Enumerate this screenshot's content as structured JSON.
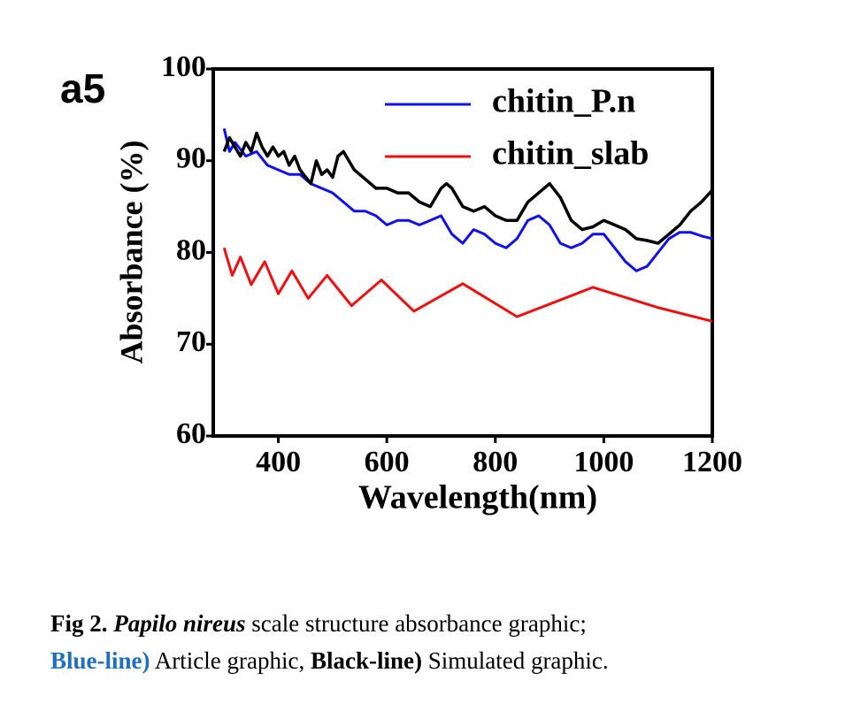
{
  "chart_data": {
    "type": "line",
    "panel_label": "a5",
    "xlabel": "Wavelength(nm)",
    "ylabel": "Absorbance (%)",
    "xlim": [
      280,
      1200
    ],
    "xticks": [
      400,
      600,
      800,
      1000,
      1200
    ],
    "ylim": [
      60,
      100
    ],
    "yticks": [
      60,
      70,
      80,
      90,
      100
    ],
    "grid": false,
    "legend": "upper right",
    "series": [
      {
        "name": "chitin_P.n",
        "color": "#1010ee",
        "x": [
          300,
          310,
          320,
          340,
          360,
          380,
          400,
          420,
          440,
          460,
          480,
          500,
          520,
          540,
          560,
          580,
          600,
          620,
          640,
          660,
          680,
          700,
          720,
          740,
          760,
          780,
          800,
          820,
          840,
          860,
          880,
          900,
          920,
          940,
          960,
          980,
          1000,
          1020,
          1040,
          1060,
          1080,
          1100,
          1120,
          1140,
          1160,
          1180,
          1200
        ],
        "values": [
          93.5,
          91,
          92,
          90.5,
          91,
          89.5,
          89,
          88.5,
          88.5,
          87.5,
          87,
          86.5,
          85.5,
          84.5,
          84.5,
          84,
          83,
          83.5,
          83.5,
          83,
          83.5,
          84,
          82,
          81,
          82.5,
          82,
          81,
          80.5,
          81.5,
          83.5,
          84,
          83,
          81,
          80.5,
          81,
          82,
          82,
          80.5,
          79,
          78,
          78.5,
          80,
          81.5,
          82.2,
          82.2,
          81.8,
          81.5
        ]
      },
      {
        "name": "chitin_slab",
        "color": "#ee1010",
        "x": [
          300,
          315,
          330,
          350,
          375,
          400,
          425,
          455,
          490,
          535,
          590,
          650,
          740,
          840,
          980,
          1100,
          1200
        ],
        "values": [
          80.5,
          77.5,
          79.5,
          76.5,
          79,
          75.5,
          78,
          75,
          77.5,
          74.2,
          77,
          73.6,
          76.6,
          73,
          76.2,
          74,
          72.5
        ]
      },
      {
        "color": "#000000",
        "x": [
          300,
          310,
          320,
          330,
          340,
          350,
          360,
          370,
          380,
          390,
          400,
          410,
          420,
          430,
          440,
          460,
          470,
          480,
          490,
          500,
          510,
          520,
          540,
          560,
          580,
          600,
          620,
          640,
          660,
          680,
          700,
          710,
          720,
          740,
          760,
          780,
          800,
          820,
          840,
          860,
          880,
          900,
          920,
          940,
          960,
          980,
          1000,
          1020,
          1040,
          1060,
          1080,
          1100,
          1120,
          1140,
          1160,
          1180,
          1200
        ],
        "values": [
          91,
          92.5,
          91.5,
          90.5,
          92,
          91,
          93,
          91.5,
          90.5,
          91.5,
          90.5,
          91,
          89.5,
          90.5,
          89,
          87.5,
          90,
          88.5,
          89,
          88.2,
          90.5,
          91,
          89,
          88,
          87,
          87,
          86.5,
          86.5,
          85.5,
          85,
          87,
          87.5,
          87,
          85,
          84.5,
          85,
          84,
          83.5,
          83.5,
          85.5,
          86.5,
          87.5,
          86,
          83.5,
          82.5,
          82.8,
          83.5,
          83,
          82.5,
          81.5,
          81.3,
          81,
          82,
          83,
          84.5,
          85.5,
          86.8
        ]
      }
    ]
  },
  "caption": {
    "label": "Fig 2.",
    "species": "Papilo nireus",
    "text": "scale structure absorbance graphic;",
    "blue_label": "Blue-line)",
    "blue_text": "Article graphic,",
    "black_label": "Black-line)",
    "black_text": "Simulated graphic."
  }
}
